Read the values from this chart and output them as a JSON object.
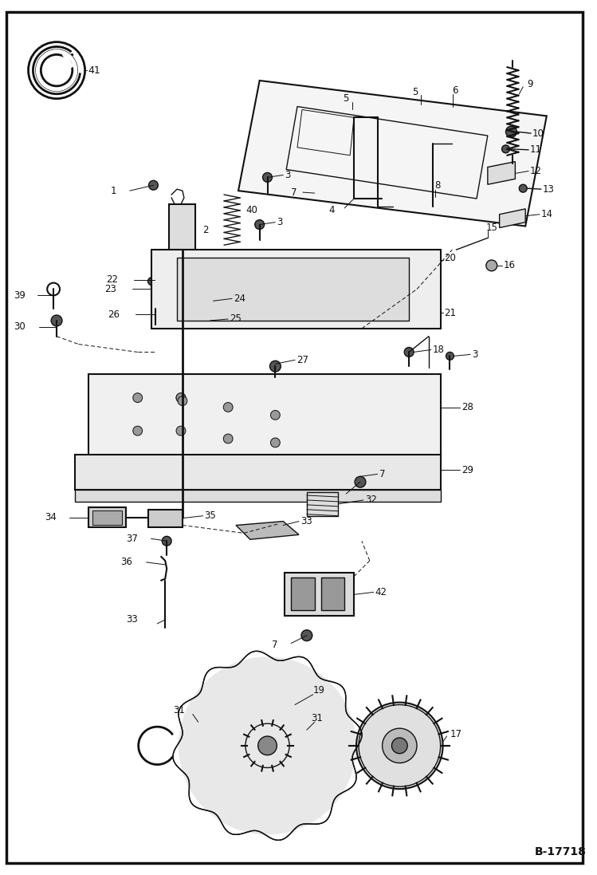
{
  "figure_width": 7.49,
  "figure_height": 10.97,
  "dpi": 100,
  "bg_color": "#ffffff",
  "border_color": "#111111",
  "text_color": "#111111",
  "diagram_id": "B-17718"
}
